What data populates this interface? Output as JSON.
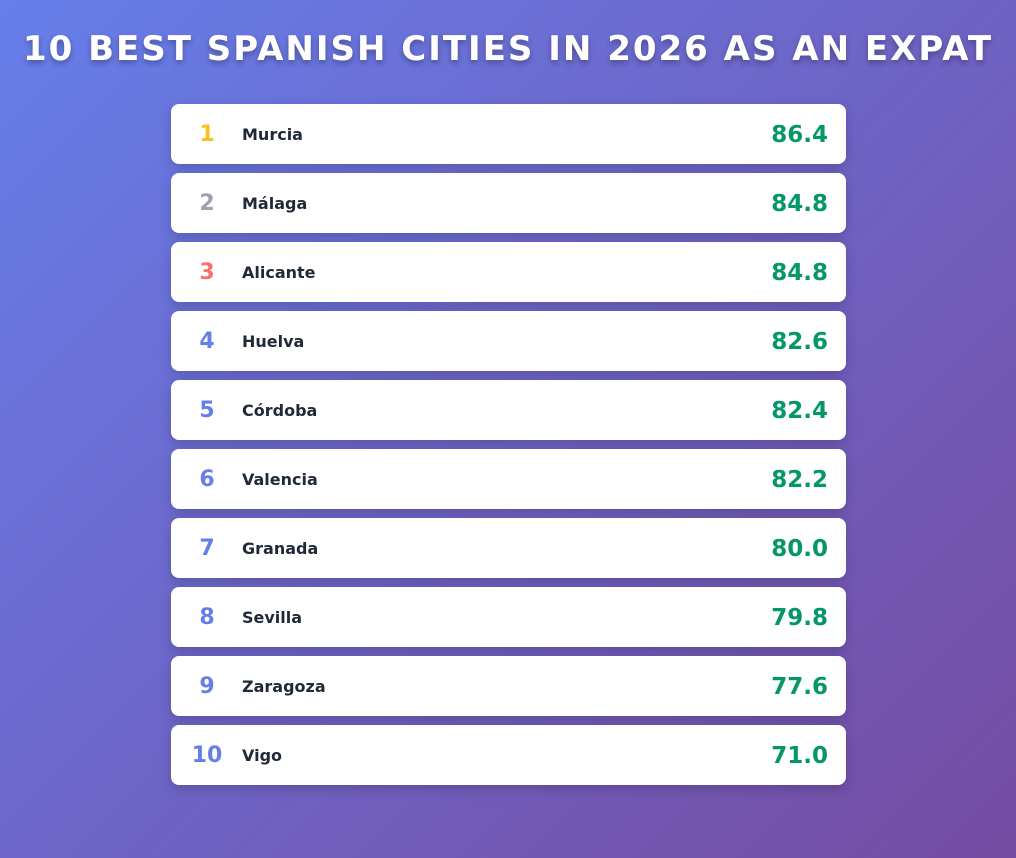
{
  "title": "10 BEST SPANISH CITIES IN 2026 AS AN EXPAT",
  "colors": {
    "rank_1": "#fbbf24",
    "rank_2": "#9ca3af",
    "rank_3": "#f87171",
    "rank_default": "#667eea",
    "score": "#059669"
  },
  "rankings": [
    {
      "rank": "1",
      "city": "Murcia",
      "score": "86.4"
    },
    {
      "rank": "2",
      "city": "Málaga",
      "score": "84.8"
    },
    {
      "rank": "3",
      "city": "Alicante",
      "score": "84.8"
    },
    {
      "rank": "4",
      "city": "Huelva",
      "score": "82.6"
    },
    {
      "rank": "5",
      "city": "Córdoba",
      "score": "82.4"
    },
    {
      "rank": "6",
      "city": "Valencia",
      "score": "82.2"
    },
    {
      "rank": "7",
      "city": "Granada",
      "score": "80.0"
    },
    {
      "rank": "8",
      "city": "Sevilla",
      "score": "79.8"
    },
    {
      "rank": "9",
      "city": "Zaragoza",
      "score": "77.6"
    },
    {
      "rank": "10",
      "city": "Vigo",
      "score": "71.0"
    }
  ]
}
